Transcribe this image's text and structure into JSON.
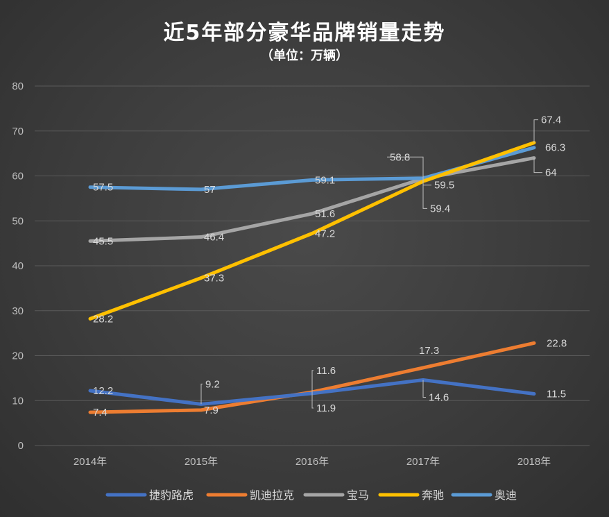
{
  "chart_data": {
    "type": "line",
    "title": "近5年部分豪华品牌销量走势",
    "subtitle": "（单位：万辆）",
    "categories": [
      "2014年",
      "2015年",
      "2016年",
      "2017年",
      "2018年"
    ],
    "ylim": [
      0,
      80
    ],
    "yticks": [
      0,
      10,
      20,
      30,
      40,
      50,
      60,
      70,
      80
    ],
    "grid": true,
    "legend_position": "bottom",
    "series": [
      {
        "name": "捷豹路虎",
        "color": "#4472c4",
        "values": [
          12.2,
          9.2,
          11.6,
          14.6,
          11.5
        ],
        "labels": [
          "12.2",
          "9.2",
          "11.6",
          "14.6",
          "11.5"
        ]
      },
      {
        "name": "凯迪拉克",
        "color": "#ed7d31",
        "values": [
          7.4,
          7.9,
          11.9,
          17.3,
          22.8
        ],
        "labels": [
          "7.4",
          "7.9",
          "11.9",
          "17.3",
          "22.8"
        ]
      },
      {
        "name": "宝马",
        "color": "#a5a5a5",
        "values": [
          45.5,
          46.4,
          51.6,
          59.4,
          64
        ],
        "labels": [
          "45.5",
          "46.4",
          "51.6",
          "59.4",
          "64"
        ]
      },
      {
        "name": "奔驰",
        "color": "#ffc000",
        "values": [
          28.2,
          37.3,
          47.2,
          58.8,
          67.4
        ],
        "labels": [
          "28.2",
          "37.3",
          "47.2",
          "58.8",
          "67.4"
        ]
      },
      {
        "name": "奥迪",
        "color": "#5b9bd5",
        "values": [
          57.5,
          57,
          59.1,
          59.5,
          66.3
        ],
        "labels": [
          "57.5",
          "57",
          "59.1",
          "59.5",
          "66.3"
        ]
      }
    ]
  }
}
